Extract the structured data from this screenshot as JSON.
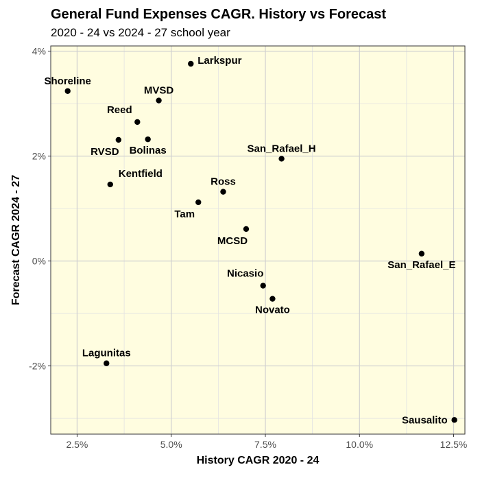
{
  "chart_data": {
    "type": "scatter",
    "title": "General Fund Expenses CAGR. History vs Forecast",
    "subtitle": "2020 - 24 vs 2024 - 27 school year",
    "xlabel": "History CAGR 2020 - 24",
    "ylabel": "Forecast CAGR 2024 - 27",
    "xlim": [
      1.8,
      12.8
    ],
    "ylim": [
      -3.3,
      4.1
    ],
    "x_ticks": [
      2.5,
      5.0,
      7.5,
      10.0,
      12.5
    ],
    "x_tick_labels": [
      "2.5%",
      "5.0%",
      "7.5%",
      "10.0%",
      "12.5%"
    ],
    "y_ticks": [
      -2,
      0,
      2,
      4
    ],
    "y_tick_labels": [
      "-2%",
      "0%",
      "2%",
      "4%"
    ],
    "grid": true,
    "background_color": "#fffde0",
    "point_color": "#000000",
    "points": [
      {
        "label": "Shoreline",
        "x": 2.25,
        "y": 3.24,
        "label_pos": "above"
      },
      {
        "label": "Larkspur",
        "x": 5.52,
        "y": 3.76,
        "label_pos": "right"
      },
      {
        "label": "MVSD",
        "x": 4.67,
        "y": 3.06,
        "label_pos": "above"
      },
      {
        "label": "Reed",
        "x": 4.1,
        "y": 2.65,
        "label_pos": "above-left"
      },
      {
        "label": "RVSD",
        "x": 3.6,
        "y": 2.31,
        "label_pos": "below-left"
      },
      {
        "label": "Bolinas",
        "x": 4.38,
        "y": 2.32,
        "label_pos": "below"
      },
      {
        "label": "San_Rafael_H",
        "x": 7.93,
        "y": 1.95,
        "label_pos": "above"
      },
      {
        "label": "Kentfield",
        "x": 3.38,
        "y": 1.46,
        "label_pos": "above-right"
      },
      {
        "label": "Ross",
        "x": 6.38,
        "y": 1.32,
        "label_pos": "above"
      },
      {
        "label": "Tam",
        "x": 5.72,
        "y": 1.12,
        "label_pos": "below-left"
      },
      {
        "label": "MCSD",
        "x": 6.99,
        "y": 0.61,
        "label_pos": "below-left"
      },
      {
        "label": "San_Rafael_E",
        "x": 11.65,
        "y": 0.14,
        "label_pos": "below"
      },
      {
        "label": "Nicasio",
        "x": 7.44,
        "y": -0.47,
        "label_pos": "above-left"
      },
      {
        "label": "Novato",
        "x": 7.69,
        "y": -0.72,
        "label_pos": "below"
      },
      {
        "label": "Lagunitas",
        "x": 3.28,
        "y": -1.95,
        "label_pos": "above"
      },
      {
        "label": "Sausalito",
        "x": 12.52,
        "y": -3.03,
        "label_pos": "left"
      }
    ]
  }
}
